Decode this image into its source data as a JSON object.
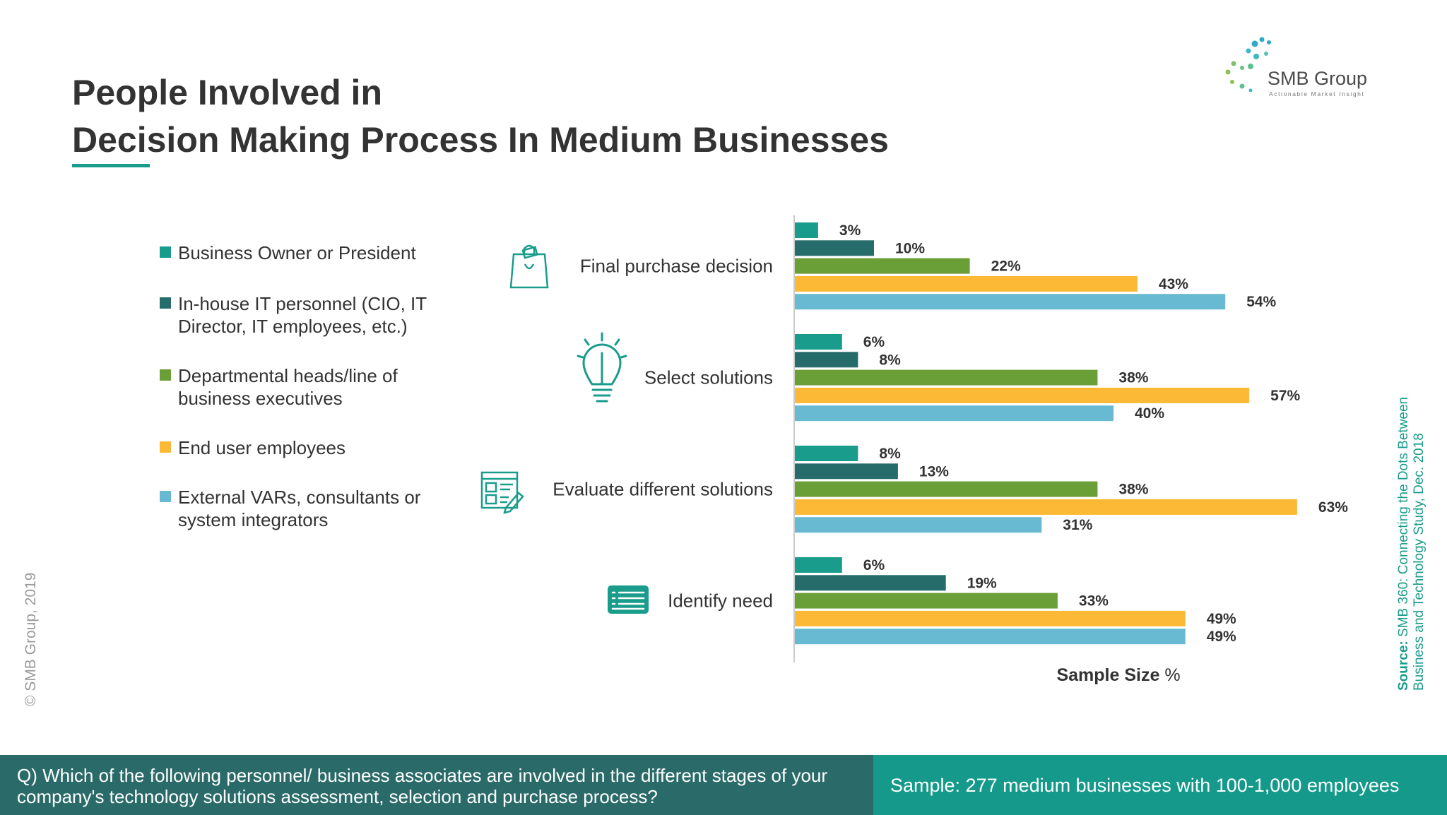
{
  "title": {
    "line1": "People Involved in",
    "line2": "Decision Making Process In Medium Businesses"
  },
  "logo": {
    "name": "SMB Group",
    "tagline": "Actionable Market Insight"
  },
  "copyright": "© SMB Group, 2019",
  "source": {
    "label": "Source:",
    "text": "SMB 360: Connecting the Dots Between Business and Technology  Study, Dec. 2018"
  },
  "question": "Q) Which of the following personnel/ business associates are involved in the different stages of your company's technology solutions assessment, selection and purchase process?",
  "sample": "Sample: 277 medium businesses with 100-1,000 employees",
  "colors": {
    "teal": "#1a9c8c",
    "dark_teal": "#256c6a",
    "green": "#6a9e36",
    "yellow": "#fbb936",
    "light_blue": "#68b9d2",
    "text": "#333333"
  },
  "chart_data": {
    "type": "bar",
    "orientation": "horizontal",
    "categories": [
      "Final purchase decision",
      "Select solutions",
      "Evaluate different solutions",
      "Identify need"
    ],
    "category_icons": [
      "shopping-bag-icon",
      "lightbulb-icon",
      "browser-window-icon",
      "id-card-icon"
    ],
    "series": [
      {
        "name": "Business Owner or President",
        "color": "#1a9c8c",
        "values": [
          3,
          6,
          8,
          6
        ]
      },
      {
        "name": "In-house IT personnel (CIO, IT Director, IT employees, etc.)",
        "color": "#256c6a",
        "values": [
          10,
          8,
          13,
          19
        ]
      },
      {
        "name": "Departmental heads/line of business executives",
        "color": "#6a9e36",
        "values": [
          22,
          38,
          38,
          33
        ]
      },
      {
        "name": "End user employees",
        "color": "#fbb936",
        "values": [
          43,
          57,
          63,
          49
        ]
      },
      {
        "name": "External VARs, consultants or system integrators",
        "color": "#68b9d2",
        "values": [
          54,
          40,
          31,
          49
        ]
      }
    ],
    "value_suffix": "%",
    "xlabel": "Sample Size %",
    "xlim": [
      0,
      63
    ],
    "grid": false,
    "legend_position": "left"
  }
}
